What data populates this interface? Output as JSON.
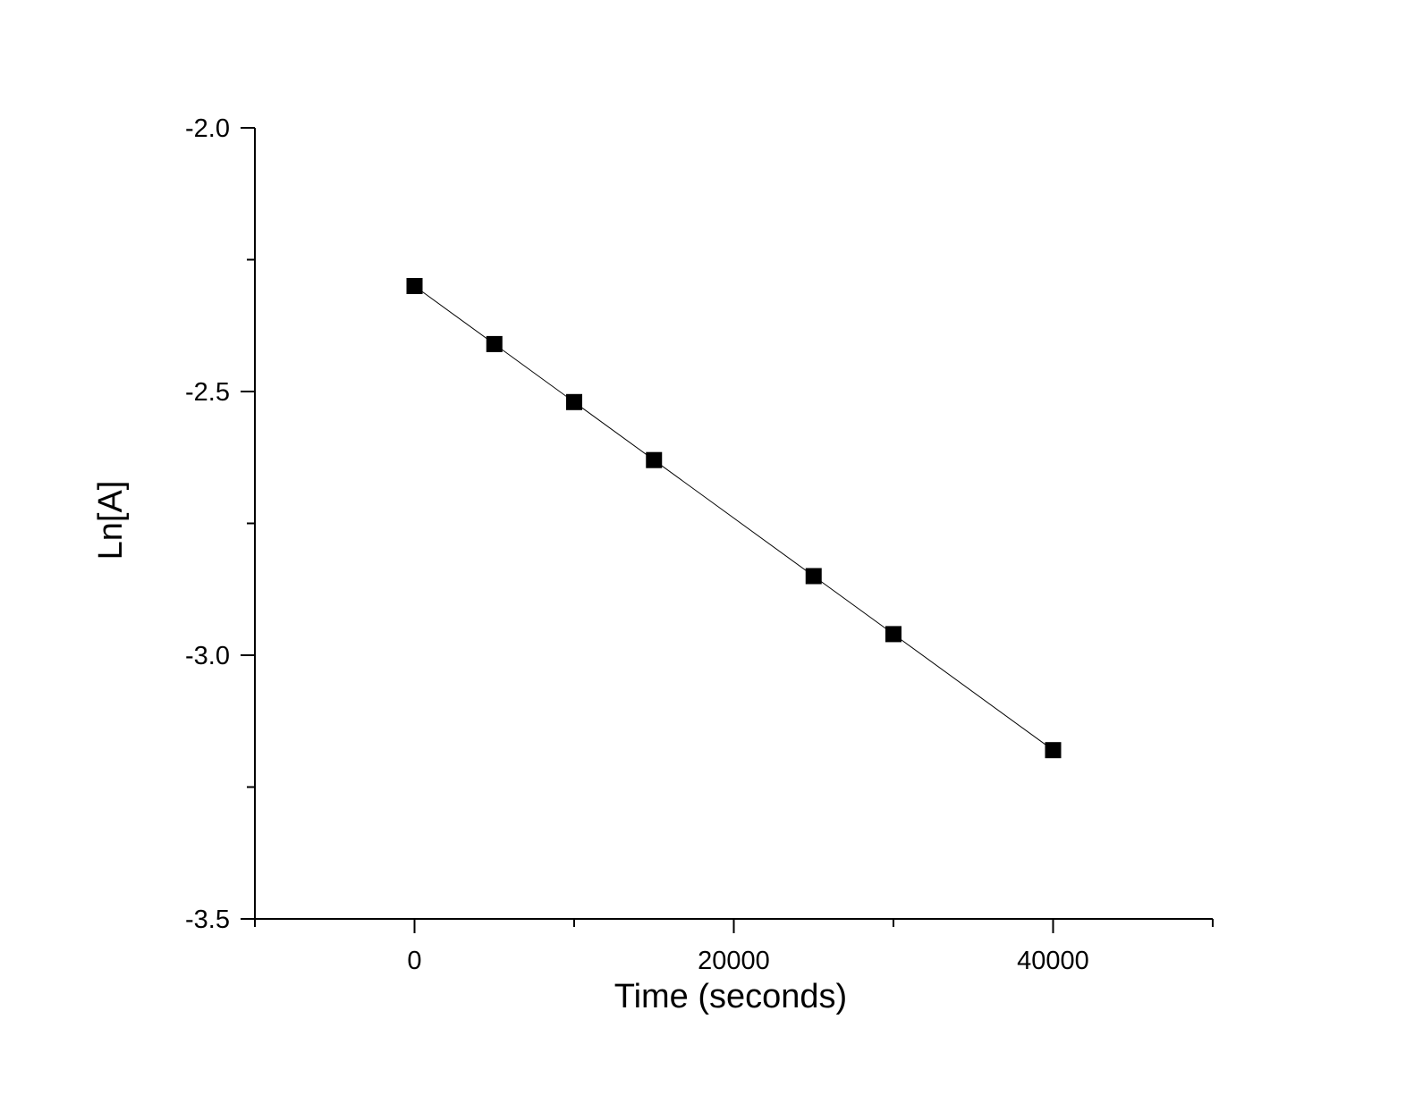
{
  "chart_data": {
    "type": "scatter",
    "title": "",
    "xlabel": "Time (seconds)",
    "ylabel": "Ln[A]",
    "xlim": [
      -10000,
      50000
    ],
    "ylim": [
      -3.5,
      -2.0
    ],
    "x_major_ticks": [
      0,
      20000,
      40000
    ],
    "x_tick_labels": [
      "0",
      "20000",
      "40000"
    ],
    "x_minor_ticks": [
      -10000,
      10000,
      30000,
      50000
    ],
    "y_major_ticks": [
      -2.0,
      -2.5,
      -3.0,
      -3.5
    ],
    "y_tick_labels": [
      "-2.0",
      "-2.5",
      "-3.0",
      "-3.5"
    ],
    "y_minor_ticks": [
      -2.25,
      -2.75,
      -3.25
    ],
    "grid": false,
    "legend": "none",
    "series": [
      {
        "x": [
          0,
          5000,
          10000,
          15000,
          25000,
          30000,
          40000
        ],
        "y": [
          -2.3,
          -2.41,
          -2.52,
          -2.63,
          -2.85,
          -2.96,
          -3.18
        ],
        "color": "#000000",
        "marker": "square",
        "connected": true
      }
    ]
  }
}
